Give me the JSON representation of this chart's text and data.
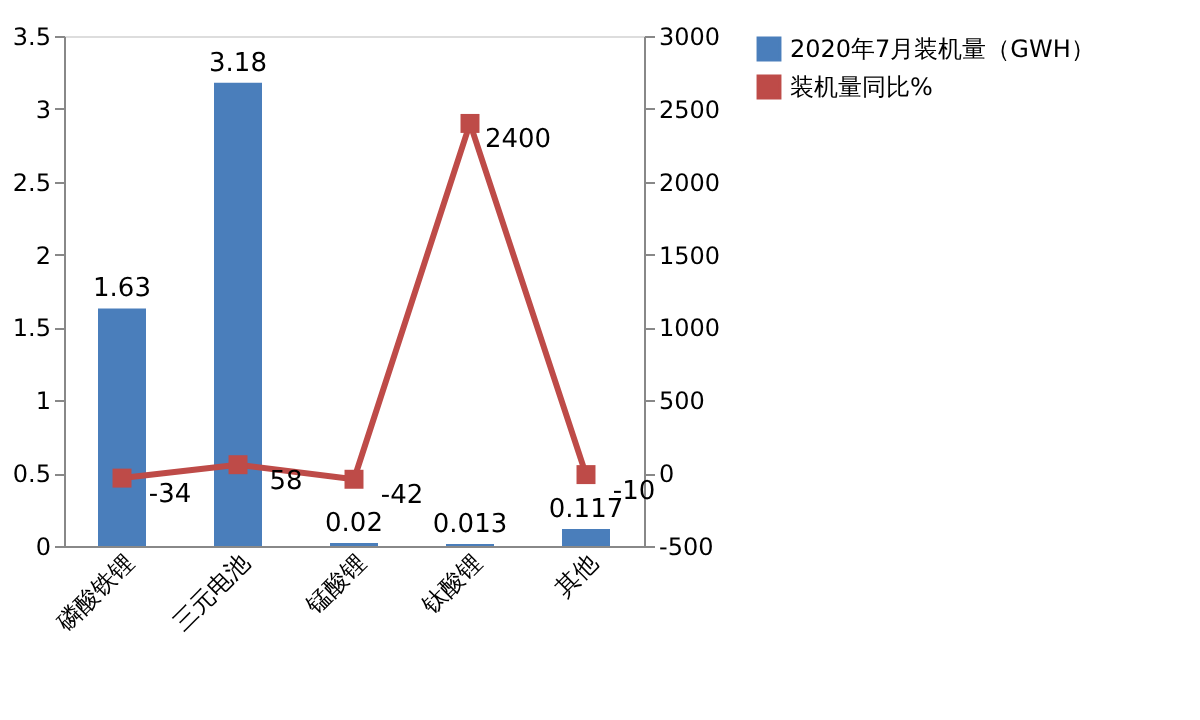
{
  "chart_data": {
    "type": "bar",
    "categories": [
      "磷酸铁锂",
      "三元电池",
      "锰酸锂",
      "钛酸锂",
      "其他"
    ],
    "series": [
      {
        "name": "2020年7月装机量（GWH）",
        "color": "#4a7ebb",
        "values": [
          1.63,
          3.18,
          0.02,
          0.013,
          0.117
        ]
      },
      {
        "name": "装机量同比%",
        "color": "#be4b48",
        "type": "line",
        "axis": "y2",
        "marker": "square",
        "values": [
          -34,
          58,
          -42,
          2400,
          -10
        ]
      }
    ],
    "ylim": [
      0,
      3.5
    ],
    "yticks": [
      0,
      0.5,
      1,
      1.5,
      2,
      2.5,
      3,
      3.5
    ],
    "y2lim": [
      -500,
      3000
    ],
    "y2ticks": [
      -500,
      0,
      500,
      1000,
      1500,
      2000,
      2500,
      3000
    ],
    "data_labels": true,
    "legend": "right",
    "grid": false
  }
}
